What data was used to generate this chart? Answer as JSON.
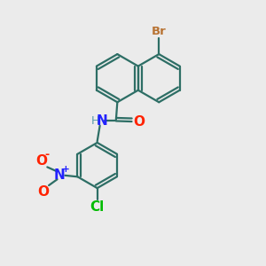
{
  "background_color": "#ebebeb",
  "bond_color": "#2d6e65",
  "atoms": {
    "Br": {
      "color": "#b87333",
      "label": "Br"
    },
    "O": {
      "color": "#ff2200",
      "label": "O"
    },
    "N_amide": {
      "color": "#2222ff",
      "label": "N"
    },
    "H": {
      "color": "#5599aa",
      "label": "H"
    },
    "Cl": {
      "color": "#00bb00",
      "label": "Cl"
    },
    "N_nitro": {
      "color": "#2222ff",
      "label": "N"
    },
    "O_nitro1": {
      "color": "#ff2200",
      "label": "O"
    },
    "O_nitro2": {
      "color": "#ff2200",
      "label": "O"
    },
    "plus": {
      "color": "#2222ff",
      "label": "+"
    },
    "minus": {
      "color": "#ff2200",
      "label": "-"
    }
  },
  "figsize": [
    3.0,
    3.0
  ],
  "dpi": 100
}
